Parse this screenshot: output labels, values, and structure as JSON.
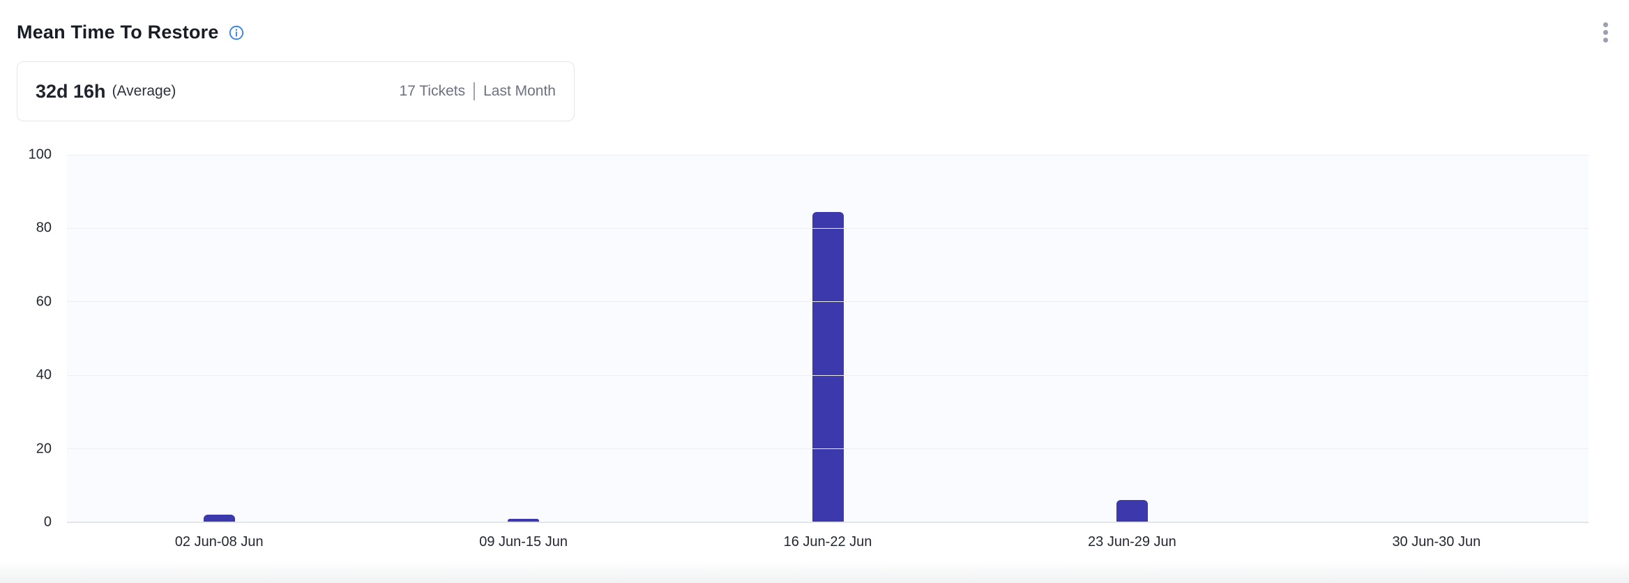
{
  "header": {
    "title": "Mean Time To Restore"
  },
  "summary": {
    "value": "32d 16h",
    "value_suffix": "(Average)",
    "tickets": "17 Tickets",
    "period": "Last Month"
  },
  "colors": {
    "bar": "#3B39AC",
    "info_icon": "#2F80ED",
    "plot_background": "#FAFBFE",
    "gridline": "#ECEDF1",
    "axis_line": "#E3E5EA",
    "muted_text": "#6B7280",
    "tick_text": "#23272F",
    "title_text": "#181C25",
    "menu_dots": "#9AA0AE"
  },
  "chart_data": {
    "type": "bar",
    "categories": [
      "02 Jun-08 Jun",
      "09 Jun-15 Jun",
      "16 Jun-22 Jun",
      "23 Jun-29 Jun",
      "30 Jun-30 Jun"
    ],
    "values": [
      2,
      1,
      84.5,
      6,
      0
    ],
    "title": "Mean Time To Restore",
    "xlabel": "",
    "ylabel": "",
    "ylim": [
      0,
      100
    ],
    "yticks": [
      0,
      20,
      40,
      60,
      80,
      100
    ],
    "grid": true,
    "legend": false,
    "bar_color": "#3B39AC"
  }
}
